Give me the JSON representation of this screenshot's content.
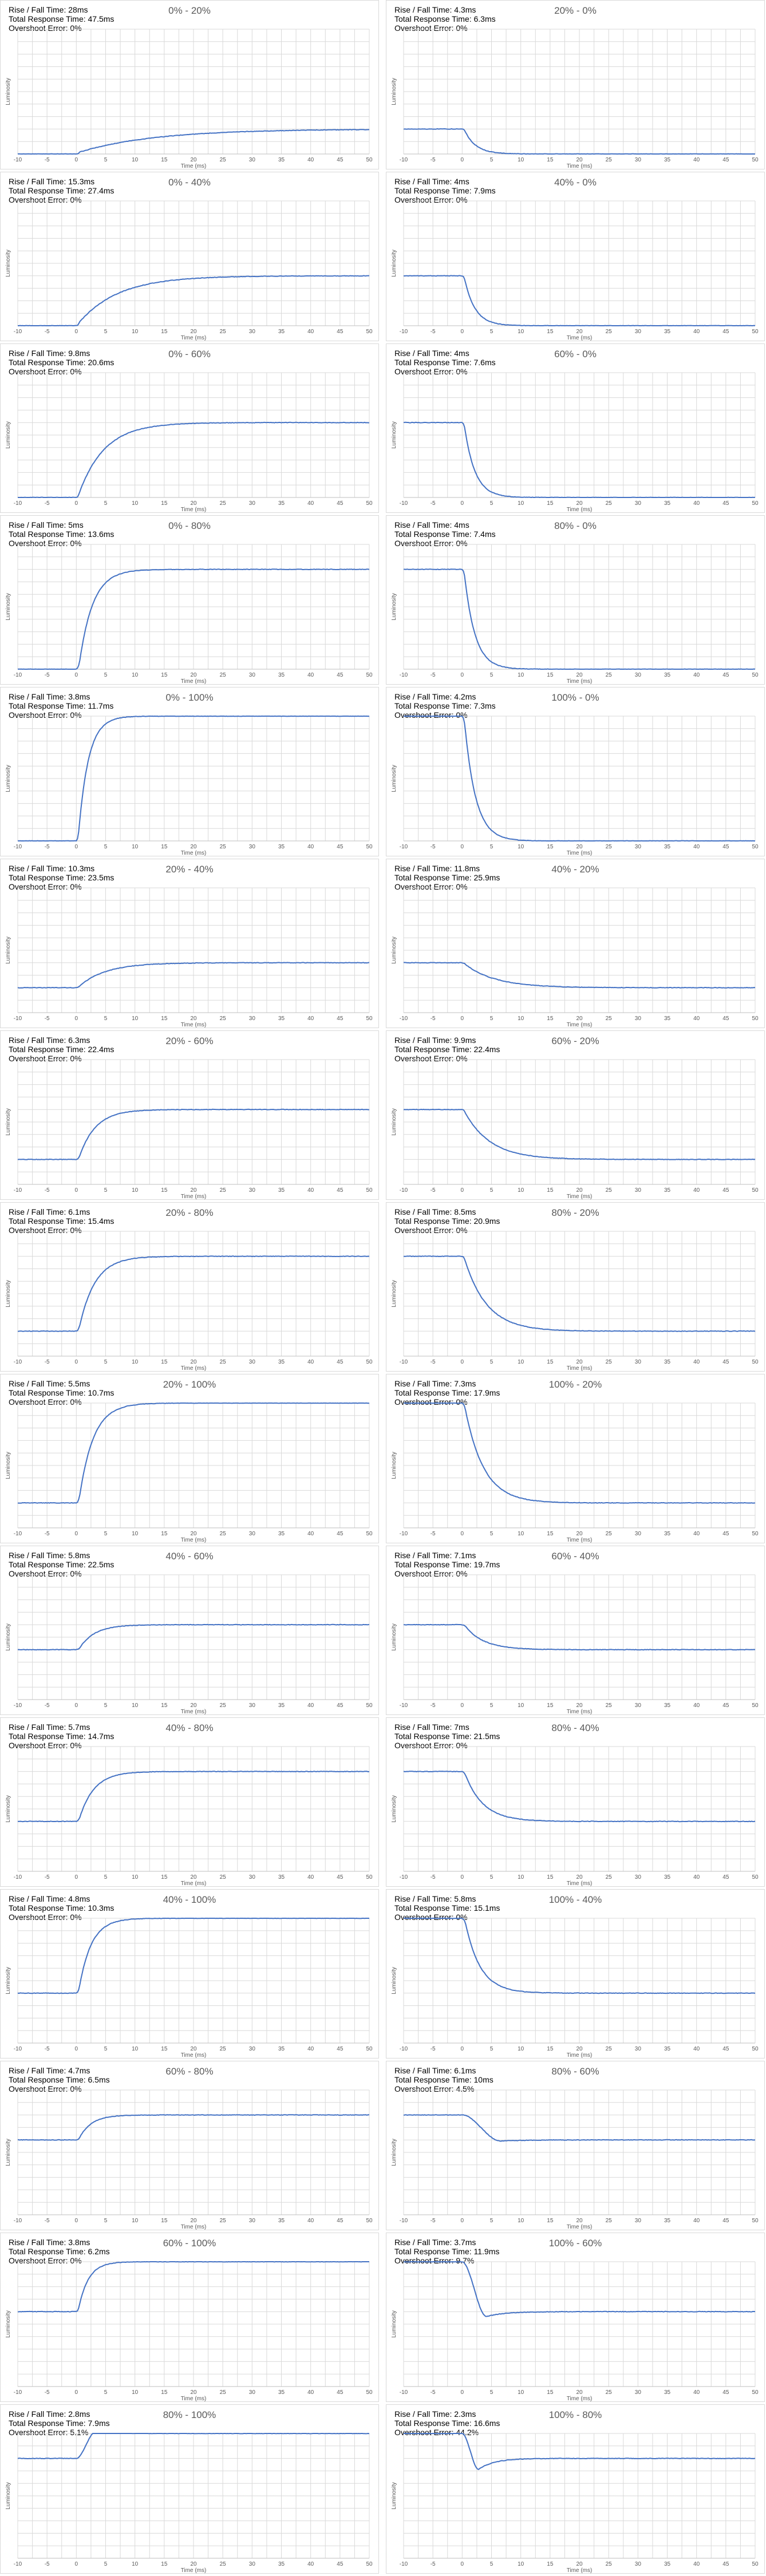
{
  "labels": {
    "rise_fall_prefix": "Rise / Fall Time: ",
    "total_prefix": "Total Response Time: ",
    "overshoot_prefix": "Overshoot Error: ",
    "xlabel": "Time (ms)",
    "ylabel": "Luminosity"
  },
  "colors": {
    "line": "#4472c4",
    "grid": "#d9d9d9",
    "axis": "#bfbfbf",
    "border": "#d9d9d9",
    "title": "#595959"
  },
  "chart_data": [
    {
      "type": "line",
      "title": "0% - 20%",
      "from": 0,
      "to": 20,
      "rise_fall": "28ms",
      "total": "47.5ms",
      "overshoot": "0%",
      "xlim": [
        -10,
        50
      ],
      "xticks": [
        -10,
        -5,
        0,
        5,
        10,
        15,
        20,
        25,
        30,
        35,
        40,
        45,
        50
      ],
      "xlabel": "Time (ms)",
      "ylabel": "Luminosity",
      "tau": 13.0,
      "overshoot_frac": 0
    },
    {
      "type": "line",
      "title": "20% - 0%",
      "from": 20,
      "to": 0,
      "rise_fall": "4.3ms",
      "total": "6.3ms",
      "overshoot": "0%",
      "xlim": [
        -10,
        50
      ],
      "xticks": [
        -10,
        -5,
        0,
        5,
        10,
        15,
        20,
        25,
        30,
        35,
        40,
        45,
        50
      ],
      "xlabel": "Time (ms)",
      "ylabel": "Luminosity",
      "tau": 1.9,
      "overshoot_frac": 0
    },
    {
      "type": "line",
      "title": "0% - 40%",
      "from": 0,
      "to": 40,
      "rise_fall": "15.3ms",
      "total": "27.4ms",
      "overshoot": "0%",
      "xlim": [
        -10,
        50
      ],
      "xticks": [
        -10,
        -5,
        0,
        5,
        10,
        15,
        20,
        25,
        30,
        35,
        40,
        45,
        50
      ],
      "xlabel": "Time (ms)",
      "ylabel": "Luminosity",
      "tau": 6.8,
      "overshoot_frac": 0
    },
    {
      "type": "line",
      "title": "40% - 0%",
      "from": 40,
      "to": 0,
      "rise_fall": "4ms",
      "total": "7.9ms",
      "overshoot": "0%",
      "xlim": [
        -10,
        50
      ],
      "xticks": [
        -10,
        -5,
        0,
        5,
        10,
        15,
        20,
        25,
        30,
        35,
        40,
        45,
        50
      ],
      "xlabel": "Time (ms)",
      "ylabel": "Luminosity",
      "tau": 1.8,
      "overshoot_frac": 0
    },
    {
      "type": "line",
      "title": "0% - 60%",
      "from": 0,
      "to": 60,
      "rise_fall": "9.8ms",
      "total": "20.6ms",
      "overshoot": "0%",
      "xlim": [
        -10,
        50
      ],
      "xticks": [
        -10,
        -5,
        0,
        5,
        10,
        15,
        20,
        25,
        30,
        35,
        40,
        45,
        50
      ],
      "xlabel": "Time (ms)",
      "ylabel": "Luminosity",
      "tau": 4.4,
      "overshoot_frac": 0
    },
    {
      "type": "line",
      "title": "60% - 0%",
      "from": 60,
      "to": 0,
      "rise_fall": "4ms",
      "total": "7.6ms",
      "overshoot": "0%",
      "xlim": [
        -10,
        50
      ],
      "xticks": [
        -10,
        -5,
        0,
        5,
        10,
        15,
        20,
        25,
        30,
        35,
        40,
        45,
        50
      ],
      "xlabel": "Time (ms)",
      "ylabel": "Luminosity",
      "tau": 1.8,
      "overshoot_frac": 0
    },
    {
      "type": "line",
      "title": "0% - 80%",
      "from": 0,
      "to": 80,
      "rise_fall": "5ms",
      "total": "13.6ms",
      "overshoot": "0%",
      "xlim": [
        -10,
        50
      ],
      "xticks": [
        -10,
        -5,
        0,
        5,
        10,
        15,
        20,
        25,
        30,
        35,
        40,
        45,
        50
      ],
      "xlabel": "Time (ms)",
      "ylabel": "Luminosity",
      "tau": 2.3,
      "overshoot_frac": 0
    },
    {
      "type": "line",
      "title": "80% - 0%",
      "from": 80,
      "to": 0,
      "rise_fall": "4ms",
      "total": "7.4ms",
      "overshoot": "0%",
      "xlim": [
        -10,
        50
      ],
      "xticks": [
        -10,
        -5,
        0,
        5,
        10,
        15,
        20,
        25,
        30,
        35,
        40,
        45,
        50
      ],
      "xlabel": "Time (ms)",
      "ylabel": "Luminosity",
      "tau": 1.8,
      "overshoot_frac": 0
    },
    {
      "type": "line",
      "title": "0% - 100%",
      "from": 0,
      "to": 100,
      "rise_fall": "3.8ms",
      "total": "11.7ms",
      "overshoot": "0%",
      "xlim": [
        -10,
        50
      ],
      "xticks": [
        -10,
        -5,
        0,
        5,
        10,
        15,
        20,
        25,
        30,
        35,
        40,
        45,
        50
      ],
      "xlabel": "Time (ms)",
      "ylabel": "Luminosity",
      "tau": 1.7,
      "overshoot_frac": 0
    },
    {
      "type": "line",
      "title": "100% - 0%",
      "from": 100,
      "to": 0,
      "rise_fall": "4.2ms",
      "total": "7.3ms",
      "overshoot": "0%",
      "xlim": [
        -10,
        50
      ],
      "xticks": [
        -10,
        -5,
        0,
        5,
        10,
        15,
        20,
        25,
        30,
        35,
        40,
        45,
        50
      ],
      "xlabel": "Time (ms)",
      "ylabel": "Luminosity",
      "tau": 1.9,
      "overshoot_frac": 0
    },
    {
      "type": "line",
      "title": "20% - 40%",
      "from": 20,
      "to": 40,
      "rise_fall": "10.3ms",
      "total": "23.5ms",
      "overshoot": "0%",
      "xlim": [
        -10,
        50
      ],
      "xticks": [
        -10,
        -5,
        0,
        5,
        10,
        15,
        20,
        25,
        30,
        35,
        40,
        45,
        50
      ],
      "xlabel": "Time (ms)",
      "ylabel": "Luminosity",
      "tau": 4.6,
      "overshoot_frac": 0
    },
    {
      "type": "line",
      "title": "40% - 20%",
      "from": 40,
      "to": 20,
      "rise_fall": "11.8ms",
      "total": "25.9ms",
      "overshoot": "0%",
      "xlim": [
        -10,
        50
      ],
      "xticks": [
        -10,
        -5,
        0,
        5,
        10,
        15,
        20,
        25,
        30,
        35,
        40,
        45,
        50
      ],
      "xlabel": "Time (ms)",
      "ylabel": "Luminosity",
      "tau": 5.2,
      "overshoot_frac": 0
    },
    {
      "type": "line",
      "title": "20% - 60%",
      "from": 20,
      "to": 60,
      "rise_fall": "6.3ms",
      "total": "22.4ms",
      "overshoot": "0%",
      "xlim": [
        -10,
        50
      ],
      "xticks": [
        -10,
        -5,
        0,
        5,
        10,
        15,
        20,
        25,
        30,
        35,
        40,
        45,
        50
      ],
      "xlabel": "Time (ms)",
      "ylabel": "Luminosity",
      "tau": 2.8,
      "overshoot_frac": 0
    },
    {
      "type": "line",
      "title": "60% - 20%",
      "from": 60,
      "to": 20,
      "rise_fall": "9.9ms",
      "total": "22.4ms",
      "overshoot": "0%",
      "xlim": [
        -10,
        50
      ],
      "xticks": [
        -10,
        -5,
        0,
        5,
        10,
        15,
        20,
        25,
        30,
        35,
        40,
        45,
        50
      ],
      "xlabel": "Time (ms)",
      "ylabel": "Luminosity",
      "tau": 4.4,
      "overshoot_frac": 0
    },
    {
      "type": "line",
      "title": "20% - 80%",
      "from": 20,
      "to": 80,
      "rise_fall": "6.1ms",
      "total": "15.4ms",
      "overshoot": "0%",
      "xlim": [
        -10,
        50
      ],
      "xticks": [
        -10,
        -5,
        0,
        5,
        10,
        15,
        20,
        25,
        30,
        35,
        40,
        45,
        50
      ],
      "xlabel": "Time (ms)",
      "ylabel": "Luminosity",
      "tau": 2.7,
      "overshoot_frac": 0
    },
    {
      "type": "line",
      "title": "80% - 20%",
      "from": 80,
      "to": 20,
      "rise_fall": "8.5ms",
      "total": "20.9ms",
      "overshoot": "0%",
      "xlim": [
        -10,
        50
      ],
      "xticks": [
        -10,
        -5,
        0,
        5,
        10,
        15,
        20,
        25,
        30,
        35,
        40,
        45,
        50
      ],
      "xlabel": "Time (ms)",
      "ylabel": "Luminosity",
      "tau": 3.8,
      "overshoot_frac": 0
    },
    {
      "type": "line",
      "title": "20% - 100%",
      "from": 20,
      "to": 100,
      "rise_fall": "5.5ms",
      "total": "10.7ms",
      "overshoot": "0%",
      "xlim": [
        -10,
        50
      ],
      "xticks": [
        -10,
        -5,
        0,
        5,
        10,
        15,
        20,
        25,
        30,
        35,
        40,
        45,
        50
      ],
      "xlabel": "Time (ms)",
      "ylabel": "Luminosity",
      "tau": 2.4,
      "overshoot_frac": 0
    },
    {
      "type": "line",
      "title": "100% - 20%",
      "from": 100,
      "to": 20,
      "rise_fall": "7.3ms",
      "total": "17.9ms",
      "overshoot": "0%",
      "xlim": [
        -10,
        50
      ],
      "xticks": [
        -10,
        -5,
        0,
        5,
        10,
        15,
        20,
        25,
        30,
        35,
        40,
        45,
        50
      ],
      "xlabel": "Time (ms)",
      "ylabel": "Luminosity",
      "tau": 3.2,
      "overshoot_frac": 0
    },
    {
      "type": "line",
      "title": "40% - 60%",
      "from": 40,
      "to": 60,
      "rise_fall": "5.8ms",
      "total": "22.5ms",
      "overshoot": "0%",
      "xlim": [
        -10,
        50
      ],
      "xticks": [
        -10,
        -5,
        0,
        5,
        10,
        15,
        20,
        25,
        30,
        35,
        40,
        45,
        50
      ],
      "xlabel": "Time (ms)",
      "ylabel": "Luminosity",
      "tau": 2.6,
      "overshoot_frac": 0
    },
    {
      "type": "line",
      "title": "60% - 40%",
      "from": 60,
      "to": 40,
      "rise_fall": "7.1ms",
      "total": "19.7ms",
      "overshoot": "0%",
      "xlim": [
        -10,
        50
      ],
      "xticks": [
        -10,
        -5,
        0,
        5,
        10,
        15,
        20,
        25,
        30,
        35,
        40,
        45,
        50
      ],
      "xlabel": "Time (ms)",
      "ylabel": "Luminosity",
      "tau": 3.2,
      "overshoot_frac": 0
    },
    {
      "type": "line",
      "title": "40% - 80%",
      "from": 40,
      "to": 80,
      "rise_fall": "5.7ms",
      "total": "14.7ms",
      "overshoot": "0%",
      "xlim": [
        -10,
        50
      ],
      "xticks": [
        -10,
        -5,
        0,
        5,
        10,
        15,
        20,
        25,
        30,
        35,
        40,
        45,
        50
      ],
      "xlabel": "Time (ms)",
      "ylabel": "Luminosity",
      "tau": 2.5,
      "overshoot_frac": 0
    },
    {
      "type": "line",
      "title": "80% - 40%",
      "from": 80,
      "to": 40,
      "rise_fall": "7ms",
      "total": "21.5ms",
      "overshoot": "0%",
      "xlim": [
        -10,
        50
      ],
      "xticks": [
        -10,
        -5,
        0,
        5,
        10,
        15,
        20,
        25,
        30,
        35,
        40,
        45,
        50
      ],
      "xlabel": "Time (ms)",
      "ylabel": "Luminosity",
      "tau": 3.1,
      "overshoot_frac": 0
    },
    {
      "type": "line",
      "title": "40% - 100%",
      "from": 40,
      "to": 100,
      "rise_fall": "4.8ms",
      "total": "10.3ms",
      "overshoot": "0%",
      "xlim": [
        -10,
        50
      ],
      "xticks": [
        -10,
        -5,
        0,
        5,
        10,
        15,
        20,
        25,
        30,
        35,
        40,
        45,
        50
      ],
      "xlabel": "Time (ms)",
      "ylabel": "Luminosity",
      "tau": 2.1,
      "overshoot_frac": 0
    },
    {
      "type": "line",
      "title": "100% - 40%",
      "from": 100,
      "to": 40,
      "rise_fall": "5.8ms",
      "total": "15.1ms",
      "overshoot": "0%",
      "xlim": [
        -10,
        50
      ],
      "xticks": [
        -10,
        -5,
        0,
        5,
        10,
        15,
        20,
        25,
        30,
        35,
        40,
        45,
        50
      ],
      "xlabel": "Time (ms)",
      "ylabel": "Luminosity",
      "tau": 2.6,
      "overshoot_frac": 0
    },
    {
      "type": "line",
      "title": "60% - 80%",
      "from": 60,
      "to": 80,
      "rise_fall": "4.7ms",
      "total": "6.5ms",
      "overshoot": "0%",
      "xlim": [
        -10,
        50
      ],
      "xticks": [
        -10,
        -5,
        0,
        5,
        10,
        15,
        20,
        25,
        30,
        35,
        40,
        45,
        50
      ],
      "xlabel": "Time (ms)",
      "ylabel": "Luminosity",
      "tau": 2.1,
      "overshoot_frac": 0
    },
    {
      "type": "line",
      "title": "80% - 60%",
      "from": 80,
      "to": 60,
      "rise_fall": "6.1ms",
      "total": "10ms",
      "overshoot": "4.5%",
      "xlim": [
        -10,
        50
      ],
      "xticks": [
        -10,
        -5,
        0,
        5,
        10,
        15,
        20,
        25,
        30,
        35,
        40,
        45,
        50
      ],
      "xlabel": "Time (ms)",
      "ylabel": "Luminosity",
      "tau": 2.7,
      "overshoot_frac": 0.045
    },
    {
      "type": "line",
      "title": "60% - 100%",
      "from": 60,
      "to": 100,
      "rise_fall": "3.8ms",
      "total": "6.2ms",
      "overshoot": "0%",
      "xlim": [
        -10,
        50
      ],
      "xticks": [
        -10,
        -5,
        0,
        5,
        10,
        15,
        20,
        25,
        30,
        35,
        40,
        45,
        50
      ],
      "xlabel": "Time (ms)",
      "ylabel": "Luminosity",
      "tau": 1.7,
      "overshoot_frac": 0
    },
    {
      "type": "line",
      "title": "100% - 60%",
      "from": 100,
      "to": 60,
      "rise_fall": "3.7ms",
      "total": "11.9ms",
      "overshoot": "9.7%",
      "xlim": [
        -10,
        50
      ],
      "xticks": [
        -10,
        -5,
        0,
        5,
        10,
        15,
        20,
        25,
        30,
        35,
        40,
        45,
        50
      ],
      "xlabel": "Time (ms)",
      "ylabel": "Luminosity",
      "tau": 1.6,
      "overshoot_frac": 0.097
    },
    {
      "type": "line",
      "title": "80% - 100%",
      "from": 80,
      "to": 100,
      "rise_fall": "2.8ms",
      "total": "7.9ms",
      "overshoot": "5.1%",
      "xlim": [
        -10,
        50
      ],
      "xticks": [
        -10,
        -5,
        0,
        5,
        10,
        15,
        20,
        25,
        30,
        35,
        40,
        45,
        50
      ],
      "xlabel": "Time (ms)",
      "ylabel": "Luminosity",
      "tau": 1.2,
      "overshoot_frac": 0.051
    },
    {
      "type": "line",
      "title": "100% - 80%",
      "from": 100,
      "to": 80,
      "rise_fall": "2.3ms",
      "total": "16.6ms",
      "overshoot": "44.2%",
      "xlim": [
        -10,
        50
      ],
      "xticks": [
        -10,
        -5,
        0,
        5,
        10,
        15,
        20,
        25,
        30,
        35,
        40,
        45,
        50
      ],
      "xlabel": "Time (ms)",
      "ylabel": "Luminosity",
      "tau": 1.0,
      "overshoot_frac": 0.442
    }
  ]
}
